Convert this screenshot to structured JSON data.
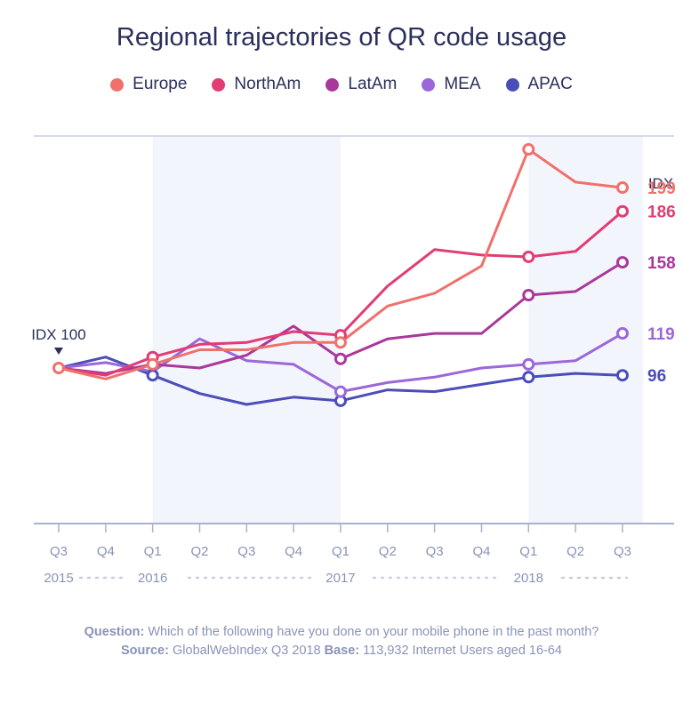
{
  "chart_data": {
    "type": "line",
    "title": "Regional trajectories of QR code usage",
    "categories": [
      "Q3",
      "Q4",
      "Q1",
      "Q2",
      "Q3",
      "Q4",
      "Q1",
      "Q2",
      "Q3",
      "Q4",
      "Q1",
      "Q2",
      "Q3"
    ],
    "years": [
      "2015",
      "2016",
      "2017",
      "2018"
    ],
    "baseline_label": "IDX 100",
    "idx_label": "IDX",
    "ylim": [
      40,
      240
    ],
    "series": [
      {
        "name": "Europe",
        "color": "#f0706b",
        "values": [
          100,
          94,
          102,
          110,
          110,
          114,
          114,
          134,
          141,
          156,
          220,
          202,
          199
        ],
        "end_label": "199",
        "markers": [
          0,
          2,
          6,
          10,
          12
        ]
      },
      {
        "name": "NorthAm",
        "color": "#e23c75",
        "values": [
          100,
          96,
          106,
          113,
          114,
          120,
          118,
          145,
          165,
          162,
          161,
          164,
          186
        ],
        "end_label": "186",
        "markers": [
          2,
          6,
          10,
          12
        ]
      },
      {
        "name": "LatAm",
        "color": "#aa379a",
        "values": [
          100,
          97,
          102,
          100,
          107,
          123,
          105,
          116,
          119,
          119,
          140,
          142,
          158
        ],
        "end_label": "158",
        "markers": [
          6,
          10,
          12
        ]
      },
      {
        "name": "MEA",
        "color": "#9b67da",
        "values": [
          100,
          103,
          98,
          116,
          104,
          102,
          87,
          92,
          95,
          100,
          102,
          104,
          119
        ],
        "end_label": "119",
        "markers": [
          6,
          10,
          12
        ]
      },
      {
        "name": "APAC",
        "color": "#4b4db8",
        "values": [
          100,
          106,
          96,
          86,
          80,
          84,
          82,
          88,
          87,
          91,
          95,
          97,
          96
        ],
        "end_label": "96",
        "markers": [
          2,
          6,
          10,
          12
        ]
      }
    ]
  },
  "footer": {
    "question_label": "Question:",
    "question_text": "Which of the following have you done on your mobile phone in the past month?",
    "source_label": "Source:",
    "source_text": "GlobalWebIndex Q3 2018",
    "base_label": "Base:",
    "base_text": "113,932 Internet Users aged 16-64"
  }
}
